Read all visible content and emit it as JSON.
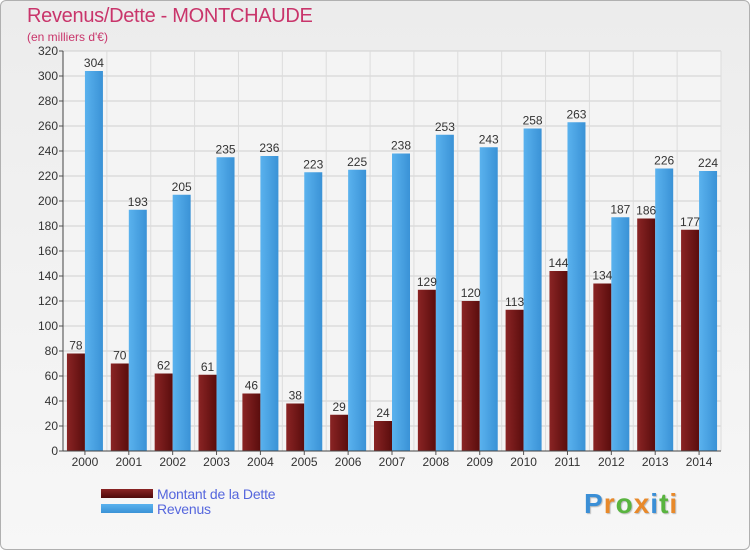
{
  "chart_data": {
    "type": "bar",
    "title": "Revenus/Dette - MONTCHAUDE",
    "subtitle": "(en milliers d'€)",
    "categories": [
      "2000",
      "2001",
      "2002",
      "2003",
      "2004",
      "2005",
      "2006",
      "2007",
      "2008",
      "2009",
      "2010",
      "2011",
      "2012",
      "2013",
      "2014"
    ],
    "series": [
      {
        "name": "Montant de la Dette",
        "color": "#7a1a1a",
        "values": [
          78,
          70,
          62,
          61,
          46,
          38,
          29,
          24,
          129,
          120,
          113,
          144,
          134,
          186,
          177
        ]
      },
      {
        "name": "Revenus",
        "color": "#4aa3e6",
        "values": [
          304,
          193,
          205,
          235,
          236,
          223,
          225,
          238,
          253,
          243,
          258,
          263,
          187,
          226,
          224
        ]
      }
    ],
    "ylim": [
      0,
      320
    ],
    "yticks": [
      0,
      20,
      40,
      60,
      80,
      100,
      120,
      140,
      160,
      180,
      200,
      220,
      240,
      260,
      280,
      300,
      320
    ],
    "grid": true,
    "legend": "bottom-left"
  },
  "logo": {
    "letters": [
      "P",
      "r",
      "o",
      "x",
      "i",
      "t",
      "i"
    ],
    "colors": [
      "#3b8fd6",
      "#e8892a",
      "#59b43f",
      "#e8892a",
      "#3b8fd6",
      "#59b43f",
      "#e8892a"
    ]
  }
}
